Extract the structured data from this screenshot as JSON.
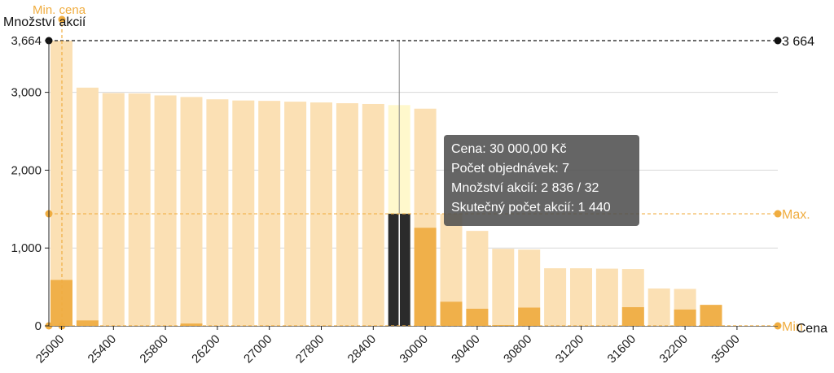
{
  "chart_data": {
    "type": "bar",
    "ylabel": "Množství akcií",
    "xlabel": "Cena",
    "ylim": [
      0,
      3800
    ],
    "y_ticks": [
      "0",
      "1,000",
      "2,000",
      "3,000",
      "3,664"
    ],
    "x_tick_labels": [
      "25000",
      "25400",
      "25800",
      "26200",
      "27000",
      "27800",
      "28400",
      "30000",
      "30400",
      "30800",
      "31200",
      "31600",
      "32200",
      "35000"
    ],
    "series": [
      {
        "name": "Množství akcií",
        "values": [
          3664,
          3060,
          2990,
          2985,
          2960,
          2940,
          2910,
          2895,
          2890,
          2880,
          2870,
          2860,
          2850,
          2836,
          2790,
          1440,
          1220,
          990,
          980,
          740,
          740,
          735,
          730,
          480,
          475,
          0
        ]
      },
      {
        "name": "Skutečný počet akcií",
        "values": [
          590,
          70,
          0,
          0,
          0,
          30,
          0,
          0,
          0,
          0,
          0,
          0,
          0,
          1440,
          1260,
          310,
          220,
          10,
          235,
          0,
          0,
          0,
          240,
          0,
          210,
          270
        ]
      }
    ],
    "highlight_index": 13,
    "ref_lines": {
      "top": {
        "value": 3664,
        "label": "3 664",
        "color": "#111111"
      },
      "max": {
        "value": 1440,
        "label": "Max.",
        "color": "#f0ad40"
      },
      "min": {
        "value": 0,
        "label": "Min.",
        "color": "#f0ad40"
      },
      "min_price": {
        "label": "Min. cena",
        "color": "#f0ad40"
      }
    },
    "colors": {
      "bar_light": "#fbe0b4",
      "bar_dark": "#f0b04a",
      "highlight_light": "#fff8cc",
      "highlight_dark": "#2b2b2b",
      "grid": "#d8d8d8"
    }
  },
  "tooltip": {
    "line1": "Cena: 30 000,00 Kč",
    "line2": "Počet objednávek: 7",
    "line3": "Množství akcií: 2 836 / 32",
    "line4": "Skutečný počet akcií: 1 440"
  }
}
